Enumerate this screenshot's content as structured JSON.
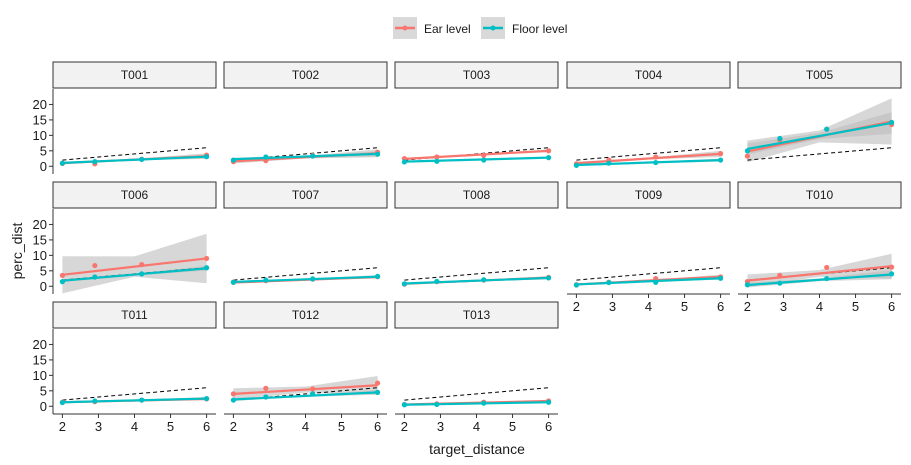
{
  "chart_data": {
    "type": "scatter",
    "facet_type": "small-multiples",
    "xlabel": "target_distance",
    "ylabel": "perc_dist",
    "xlim": [
      1.85,
      6.15
    ],
    "ylim": [
      -2.5,
      25
    ],
    "x_ticks": [
      2,
      3,
      4,
      5,
      6
    ],
    "y_ticks": [
      0,
      5,
      10,
      15,
      20
    ],
    "x_tick_labels": [
      "2",
      "3",
      "4",
      "5",
      "6"
    ],
    "y_tick_labels": [
      "0",
      "5",
      "10",
      "15",
      "20"
    ],
    "legend": {
      "position": "top",
      "entries": [
        {
          "name": "Ear level",
          "color": "#F8766D"
        },
        {
          "name": "Floor level",
          "color": "#00BFC4"
        }
      ]
    },
    "reference_line": {
      "style": "dashed",
      "color": "#000000",
      "slope": 1,
      "intercept": 0
    },
    "x_positions": [
      2,
      2.9,
      4.2,
      6
    ],
    "panels": [
      {
        "label": "T001",
        "ear": {
          "points": [
            0.9,
            0.8,
            2.3,
            3.6
          ],
          "fit": [
            1.0,
            3.3
          ],
          "band": [
            0.4,
            0.9
          ]
        },
        "floor": {
          "points": [
            1.0,
            1.5,
            2.2,
            3.1
          ],
          "fit": [
            1.1,
            3.1
          ],
          "band": [
            0.3,
            0.5
          ]
        }
      },
      {
        "label": "T002",
        "ear": {
          "points": [
            1.5,
            1.8,
            3.5,
            4.5
          ],
          "fit": [
            1.6,
            4.2
          ],
          "band": [
            0.7,
            1.3
          ]
        },
        "floor": {
          "points": [
            2.0,
            3.0,
            3.3,
            3.9
          ],
          "fit": [
            2.3,
            4.0
          ],
          "band": [
            0.5,
            0.8
          ]
        }
      },
      {
        "label": "T003",
        "ear": {
          "points": [
            2.5,
            3.0,
            3.5,
            5.0
          ],
          "fit": [
            2.4,
            5.0
          ],
          "band": [
            0.3,
            0.5
          ]
        },
        "floor": {
          "points": [
            1.4,
            1.6,
            2.0,
            2.8
          ],
          "fit": [
            1.5,
            2.8
          ],
          "band": [
            0.2,
            0.3
          ]
        }
      },
      {
        "label": "T004",
        "ear": {
          "points": [
            0.8,
            2.0,
            3.0,
            4.1
          ],
          "fit": [
            1.0,
            4.0
          ],
          "band": [
            0.5,
            1.0
          ]
        },
        "floor": {
          "points": [
            0.3,
            1.0,
            1.2,
            2.0
          ],
          "fit": [
            0.4,
            2.0
          ],
          "band": [
            0.3,
            0.5
          ]
        }
      },
      {
        "label": "T005",
        "ear": {
          "points": [
            3.3,
            8.5,
            12.0,
            13.5
          ],
          "fit": [
            4.8,
            14.5
          ],
          "band": [
            3.5,
            7.5
          ]
        },
        "floor": {
          "points": [
            5.0,
            9.0,
            12.0,
            14.2
          ],
          "fit": [
            5.6,
            14.0
          ],
          "band": [
            1.8,
            3.5
          ]
        }
      },
      {
        "label": "T006",
        "ear": {
          "points": [
            3.5,
            6.7,
            7.0,
            9.0
          ],
          "fit": [
            3.7,
            9.0
          ],
          "band": [
            6.0,
            8.0
          ]
        },
        "floor": {
          "points": [
            1.5,
            3.0,
            4.0,
            6.0
          ],
          "fit": [
            1.8,
            5.8
          ],
          "band": [
            0.5,
            0.8
          ]
        }
      },
      {
        "label": "T007",
        "ear": {
          "points": [
            1.3,
            1.8,
            2.3,
            3.1
          ],
          "fit": [
            1.2,
            3.0
          ],
          "band": [
            0.3,
            0.5
          ]
        },
        "floor": {
          "points": [
            1.3,
            2.0,
            2.4,
            3.2
          ],
          "fit": [
            1.4,
            3.1
          ],
          "band": [
            0.3,
            0.5
          ]
        }
      },
      {
        "label": "T008",
        "ear": {
          "points": [
            0.7,
            1.5,
            2.0,
            2.9
          ],
          "fit": [
            0.8,
            2.8
          ],
          "band": [
            0.3,
            0.5
          ]
        },
        "floor": {
          "points": [
            0.8,
            1.6,
            2.1,
            2.7
          ],
          "fit": [
            0.9,
            2.7
          ],
          "band": [
            0.3,
            0.5
          ]
        }
      },
      {
        "label": "T009",
        "ear": {
          "points": [
            0.5,
            1.3,
            2.5,
            3.0
          ],
          "fit": [
            0.6,
            3.1
          ],
          "band": [
            0.3,
            0.6
          ]
        },
        "floor": {
          "points": [
            0.4,
            1.2,
            1.3,
            2.6
          ],
          "fit": [
            0.6,
            2.6
          ],
          "band": [
            0.3,
            0.5
          ]
        }
      },
      {
        "label": "T010",
        "ear": {
          "points": [
            1.5,
            3.5,
            6.1,
            6.2
          ],
          "fit": [
            1.8,
            6.5
          ],
          "band": [
            2.0,
            4.0
          ]
        },
        "floor": {
          "points": [
            0.5,
            1.0,
            2.5,
            4.0
          ],
          "fit": [
            0.4,
            3.8
          ],
          "band": [
            0.8,
            1.5
          ]
        }
      },
      {
        "label": "T011",
        "ear": {
          "points": [
            1.3,
            1.5,
            2.0,
            2.4
          ],
          "fit": [
            1.3,
            2.4
          ],
          "band": [
            0.3,
            0.5
          ]
        },
        "floor": {
          "points": [
            1.2,
            1.7,
            2.0,
            2.5
          ],
          "fit": [
            1.3,
            2.5
          ],
          "band": [
            0.3,
            0.5
          ]
        }
      },
      {
        "label": "T012",
        "ear": {
          "points": [
            4.0,
            5.8,
            5.6,
            7.5
          ],
          "fit": [
            4.0,
            6.8
          ],
          "band": [
            1.8,
            3.0
          ]
        },
        "floor": {
          "points": [
            2.0,
            3.0,
            4.0,
            4.5
          ],
          "fit": [
            2.2,
            4.5
          ],
          "band": [
            0.5,
            0.8
          ]
        }
      },
      {
        "label": "T013",
        "ear": {
          "points": [
            0.6,
            0.8,
            1.3,
            1.7
          ],
          "fit": [
            0.6,
            1.7
          ],
          "band": [
            0.2,
            0.3
          ]
        },
        "floor": {
          "points": [
            0.5,
            0.6,
            1.0,
            1.3
          ],
          "fit": [
            0.5,
            1.3
          ],
          "band": [
            0.2,
            0.3
          ]
        }
      }
    ]
  },
  "colors": {
    "ear": "#F8766D",
    "floor": "#00BFC4",
    "band": "#BDBDBD",
    "strip_fill": "#F2F2F2",
    "strip_border": "#333333",
    "axis": "#333333",
    "legend_key_bg": "#D9D9D9"
  }
}
